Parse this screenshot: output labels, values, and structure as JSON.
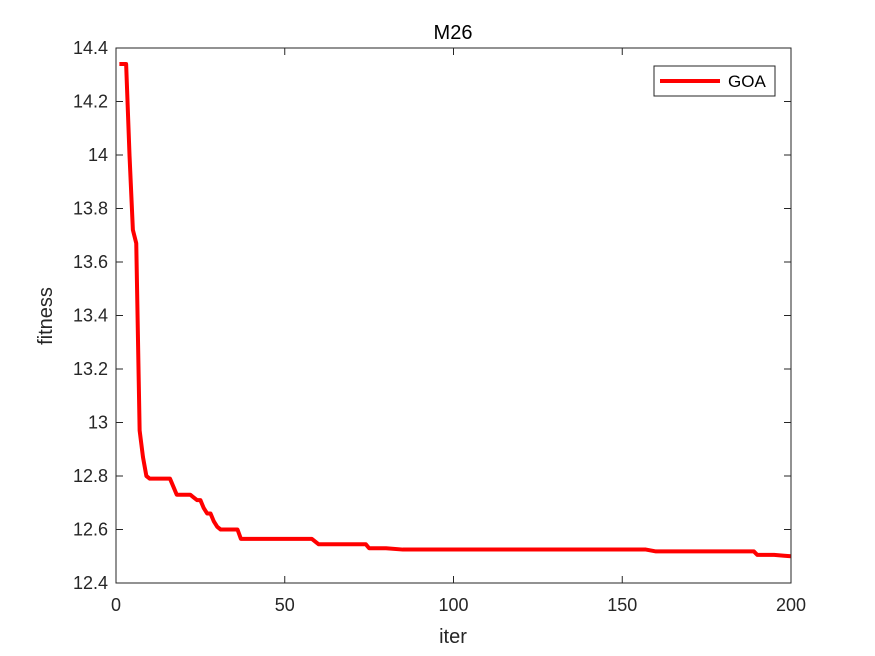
{
  "chart_data": {
    "type": "line",
    "title": "M26",
    "xlabel": "iter",
    "ylabel": "fitness",
    "xlim": [
      0,
      200
    ],
    "ylim": [
      12.4,
      14.4
    ],
    "xticks": [
      0,
      50,
      100,
      150,
      200
    ],
    "yticks": [
      12.4,
      12.6,
      12.8,
      13,
      13.2,
      13.4,
      13.6,
      13.8,
      14,
      14.2,
      14.4
    ],
    "xtick_labels": [
      "0",
      "50",
      "100",
      "150",
      "200"
    ],
    "ytick_labels": [
      "12.4",
      "12.6",
      "12.8",
      "13",
      "13.2",
      "13.4",
      "13.6",
      "13.8",
      "14",
      "14.2",
      "14.4"
    ],
    "grid": false,
    "legend_position": "top-right",
    "series": [
      {
        "name": "GOA",
        "color": "#ff0000",
        "x": [
          1,
          3,
          4,
          5,
          6,
          7,
          8,
          9,
          10,
          11,
          12,
          13,
          14,
          15,
          16,
          17,
          18,
          19,
          20,
          21,
          22,
          23,
          24,
          25,
          26,
          27,
          28,
          29,
          30,
          31,
          32,
          33,
          34,
          35,
          36,
          37,
          40,
          45,
          50,
          55,
          58,
          60,
          65,
          70,
          74,
          75,
          80,
          85,
          90,
          100,
          110,
          120,
          130,
          140,
          150,
          157,
          160,
          165,
          170,
          180,
          189,
          190,
          195,
          198,
          200
        ],
        "y": [
          14.34,
          14.34,
          14.0,
          13.72,
          13.67,
          12.97,
          12.87,
          12.8,
          12.79,
          12.79,
          12.79,
          12.79,
          12.79,
          12.79,
          12.79,
          12.76,
          12.73,
          12.73,
          12.73,
          12.73,
          12.73,
          12.72,
          12.71,
          12.71,
          12.68,
          12.66,
          12.66,
          12.63,
          12.61,
          12.6,
          12.6,
          12.6,
          12.6,
          12.6,
          12.6,
          12.565,
          12.565,
          12.565,
          12.565,
          12.565,
          12.565,
          12.545,
          12.545,
          12.545,
          12.545,
          12.53,
          12.53,
          12.525,
          12.525,
          12.525,
          12.525,
          12.525,
          12.525,
          12.525,
          12.525,
          12.525,
          12.518,
          12.518,
          12.518,
          12.518,
          12.518,
          12.505,
          12.505,
          12.502,
          12.5
        ]
      }
    ]
  }
}
